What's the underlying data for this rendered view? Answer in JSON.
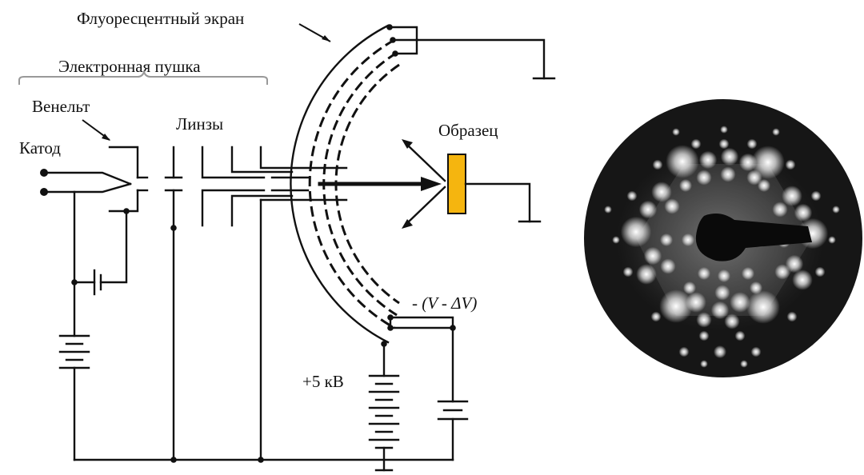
{
  "labels": {
    "screen": "Флуоресцентный экран",
    "gun": "Электронная пушка",
    "wehnelt": "Венельт",
    "lenses": "Линзы",
    "cathode": "Катод",
    "sample": "Образец",
    "retard_voltage": "- (V - ΔV)",
    "high_voltage": "+5 кВ"
  },
  "colors": {
    "sample": "#f5b50f",
    "pattern_bg": "#161616",
    "spot": "#ffffff"
  }
}
